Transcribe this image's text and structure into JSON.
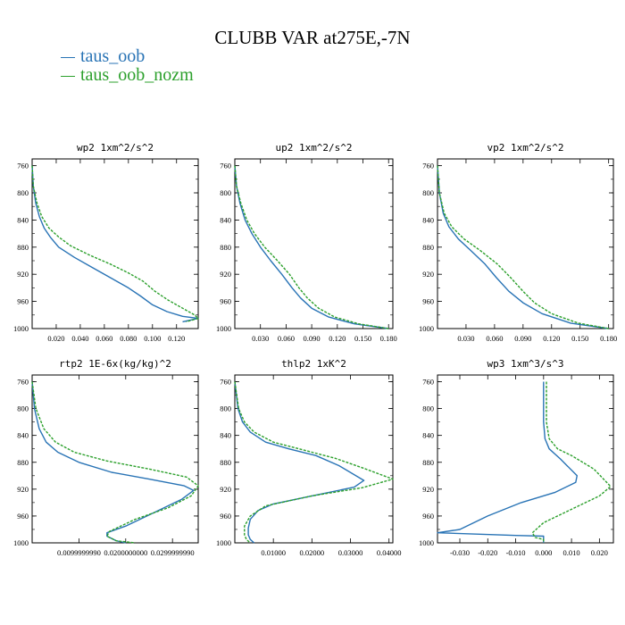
{
  "title": "CLUBB VAR at275E,-7N",
  "legend": [
    {
      "label": "taus_oob",
      "color": "#2873b5"
    },
    {
      "label": "taus_oob_nozm",
      "color": "#2ca02c"
    }
  ],
  "chart_data": [
    {
      "type": "line",
      "title": "wp2   1xm^2/s^2",
      "ylim": [
        1000,
        750
      ],
      "yticks": [
        760,
        800,
        840,
        880,
        920,
        960,
        1000
      ],
      "xlim": [
        0,
        0.138
      ],
      "xticks": [
        0.02,
        0.04,
        0.06,
        0.08,
        0.1,
        0.12
      ],
      "xtick_labels": [
        "0.020",
        "0.040",
        "0.060",
        "0.080",
        "0.100",
        "0.120"
      ],
      "series": [
        {
          "name": "taus_oob",
          "color": "#2873b5",
          "dashed": false,
          "x": [
            0,
            0.001,
            0.003,
            0.006,
            0.01,
            0.015,
            0.022,
            0.035,
            0.05,
            0.065,
            0.08,
            0.09,
            0.1,
            0.112,
            0.125,
            0.138,
            0.125
          ],
          "y": [
            760,
            790,
            815,
            835,
            852,
            865,
            880,
            895,
            910,
            925,
            940,
            952,
            965,
            975,
            982,
            985,
            990
          ]
        },
        {
          "name": "taus_oob_nozm",
          "color": "#2ca02c",
          "dashed": true,
          "x": [
            0,
            0.001,
            0.004,
            0.008,
            0.014,
            0.022,
            0.032,
            0.048,
            0.065,
            0.08,
            0.092,
            0.102,
            0.113,
            0.125,
            0.135,
            0.138,
            0.128
          ],
          "y": [
            760,
            790,
            815,
            835,
            852,
            865,
            878,
            892,
            905,
            918,
            930,
            945,
            958,
            970,
            980,
            985,
            990
          ]
        }
      ]
    },
    {
      "type": "line",
      "title": "up2   1xm^2/s^2",
      "ylim": [
        1000,
        750
      ],
      "yticks": [
        760,
        800,
        840,
        880,
        920,
        960,
        1000
      ],
      "xlim": [
        0,
        0.185
      ],
      "xticks": [
        0.03,
        0.06,
        0.09,
        0.12,
        0.15,
        0.18
      ],
      "xtick_labels": [
        "0.030",
        "0.060",
        "0.090",
        "0.120",
        "0.150",
        "0.180"
      ],
      "series": [
        {
          "name": "taus_oob",
          "color": "#2873b5",
          "dashed": false,
          "x": [
            0,
            0.002,
            0.006,
            0.012,
            0.02,
            0.03,
            0.042,
            0.055,
            0.067,
            0.077,
            0.09,
            0.11,
            0.14,
            0.18
          ],
          "y": [
            760,
            790,
            815,
            840,
            860,
            880,
            900,
            920,
            940,
            955,
            970,
            983,
            993,
            1000
          ]
        },
        {
          "name": "taus_oob_nozm",
          "color": "#2ca02c",
          "dashed": true,
          "x": [
            0,
            0.002,
            0.007,
            0.014,
            0.023,
            0.035,
            0.05,
            0.064,
            0.075,
            0.085,
            0.098,
            0.117,
            0.145,
            0.18
          ],
          "y": [
            760,
            790,
            815,
            840,
            860,
            880,
            900,
            920,
            940,
            955,
            970,
            983,
            993,
            1000
          ]
        }
      ]
    },
    {
      "type": "line",
      "title": "vp2   1xm^2/s^2",
      "ylim": [
        1000,
        750
      ],
      "yticks": [
        760,
        800,
        840,
        880,
        920,
        960,
        1000
      ],
      "xlim": [
        0,
        0.185
      ],
      "xticks": [
        0.03,
        0.06,
        0.09,
        0.12,
        0.15,
        0.18
      ],
      "xtick_labels": [
        "0.030",
        "0.060",
        "0.090",
        "0.120",
        "0.150",
        "0.180"
      ],
      "series": [
        {
          "name": "taus_oob",
          "color": "#2873b5",
          "dashed": false,
          "x": [
            0,
            0.002,
            0.006,
            0.012,
            0.022,
            0.035,
            0.05,
            0.062,
            0.075,
            0.09,
            0.11,
            0.14,
            0.18
          ],
          "y": [
            760,
            800,
            830,
            850,
            868,
            885,
            905,
            925,
            945,
            962,
            978,
            992,
            1000
          ]
        },
        {
          "name": "taus_oob_nozm",
          "color": "#2ca02c",
          "dashed": true,
          "x": [
            0,
            0.002,
            0.007,
            0.015,
            0.028,
            0.045,
            0.063,
            0.077,
            0.09,
            0.102,
            0.12,
            0.148,
            0.18
          ],
          "y": [
            760,
            800,
            830,
            850,
            868,
            885,
            905,
            925,
            945,
            962,
            978,
            992,
            1000
          ]
        }
      ]
    },
    {
      "type": "line",
      "title": "rtp2   1E-6x(kg/kg)^2",
      "ylim": [
        1000,
        750
      ],
      "yticks": [
        760,
        800,
        840,
        880,
        920,
        960,
        1000
      ],
      "xlim": [
        0,
        0.0355
      ],
      "xticks": [
        0.01,
        0.02,
        0.03
      ],
      "xtick_labels": [
        "0.0099999990",
        "0.0200000000",
        "0.0299999990"
      ],
      "series": [
        {
          "name": "taus_oob",
          "color": "#2873b5",
          "dashed": false,
          "x": [
            0,
            0.0005,
            0.0015,
            0.003,
            0.0055,
            0.01,
            0.017,
            0.025,
            0.0325,
            0.0345,
            0.032,
            0.026,
            0.02,
            0.016,
            0.016,
            0.018,
            0.02
          ],
          "y": [
            760,
            800,
            830,
            850,
            865,
            880,
            895,
            905,
            915,
            922,
            935,
            955,
            975,
            985,
            990,
            997,
            1000
          ]
        },
        {
          "name": "taus_oob_nozm",
          "color": "#2ca02c",
          "dashed": true,
          "x": [
            0,
            0.0008,
            0.0025,
            0.005,
            0.009,
            0.016,
            0.025,
            0.033,
            0.0355,
            0.034,
            0.029,
            0.022,
            0.0165,
            0.016,
            0.018,
            0.022
          ],
          "y": [
            760,
            800,
            830,
            850,
            865,
            878,
            890,
            902,
            915,
            930,
            948,
            965,
            983,
            990,
            997,
            1000
          ]
        }
      ]
    },
    {
      "type": "line",
      "title": "thlp2   1xK^2",
      "ylim": [
        1000,
        750
      ],
      "yticks": [
        760,
        800,
        840,
        880,
        920,
        960,
        1000
      ],
      "xlim": [
        0,
        0.041
      ],
      "xticks": [
        0.01,
        0.02,
        0.03,
        0.04
      ],
      "xtick_labels": [
        "0.01000",
        "0.02000",
        "0.03000",
        "0.04000"
      ],
      "series": [
        {
          "name": "taus_oob",
          "color": "#2873b5",
          "dashed": false,
          "x": [
            0,
            0.0008,
            0.002,
            0.004,
            0.008,
            0.014,
            0.021,
            0.027,
            0.0335,
            0.031,
            0.02,
            0.01,
            0.006,
            0.004,
            0.0035,
            0.0035,
            0.004,
            0.005
          ],
          "y": [
            760,
            800,
            820,
            835,
            850,
            860,
            870,
            885,
            907,
            917,
            930,
            942,
            952,
            965,
            978,
            988,
            995,
            1000
          ]
        },
        {
          "name": "taus_oob_nozm",
          "color": "#2ca02c",
          "dashed": true,
          "x": [
            0,
            0.001,
            0.0025,
            0.005,
            0.01,
            0.018,
            0.026,
            0.033,
            0.041,
            0.033,
            0.02,
            0.008,
            0.004,
            0.0025,
            0.0025,
            0.003,
            0.004
          ],
          "y": [
            760,
            800,
            820,
            835,
            850,
            862,
            874,
            888,
            905,
            918,
            930,
            945,
            960,
            975,
            988,
            995,
            1000
          ]
        }
      ]
    },
    {
      "type": "line",
      "title": "wp3   1xm^3/s^3",
      "ylim": [
        1000,
        750
      ],
      "yticks": [
        760,
        800,
        840,
        880,
        920,
        960,
        1000
      ],
      "xlim": [
        -0.038,
        0.025
      ],
      "xticks": [
        -0.03,
        -0.02,
        -0.01,
        0.0,
        0.01,
        0.02
      ],
      "xtick_labels": [
        "-0.030",
        "-0.020",
        "-0.010",
        "0.000",
        "0.010",
        "0.020"
      ],
      "series": [
        {
          "name": "taus_oob",
          "color": "#2873b5",
          "dashed": false,
          "x": [
            0,
            0,
            0.0005,
            0.002,
            0.006,
            0.012,
            0.0115,
            0.004,
            -0.008,
            -0.02,
            -0.03,
            -0.038,
            -0.01,
            0.0,
            0.0
          ],
          "y": [
            760,
            820,
            845,
            860,
            875,
            900,
            910,
            925,
            940,
            960,
            980,
            985,
            989,
            990,
            1000
          ]
        },
        {
          "name": "taus_oob_nozm",
          "color": "#2ca02c",
          "dashed": true,
          "x": [
            0.001,
            0.001,
            0.002,
            0.005,
            0.01,
            0.018,
            0.024,
            0.02,
            0.01,
            0.0,
            -0.004,
            -0.003,
            0.0,
            0.0
          ],
          "y": [
            760,
            820,
            845,
            860,
            870,
            890,
            916,
            930,
            950,
            970,
            985,
            992,
            995,
            1000
          ]
        }
      ]
    }
  ]
}
